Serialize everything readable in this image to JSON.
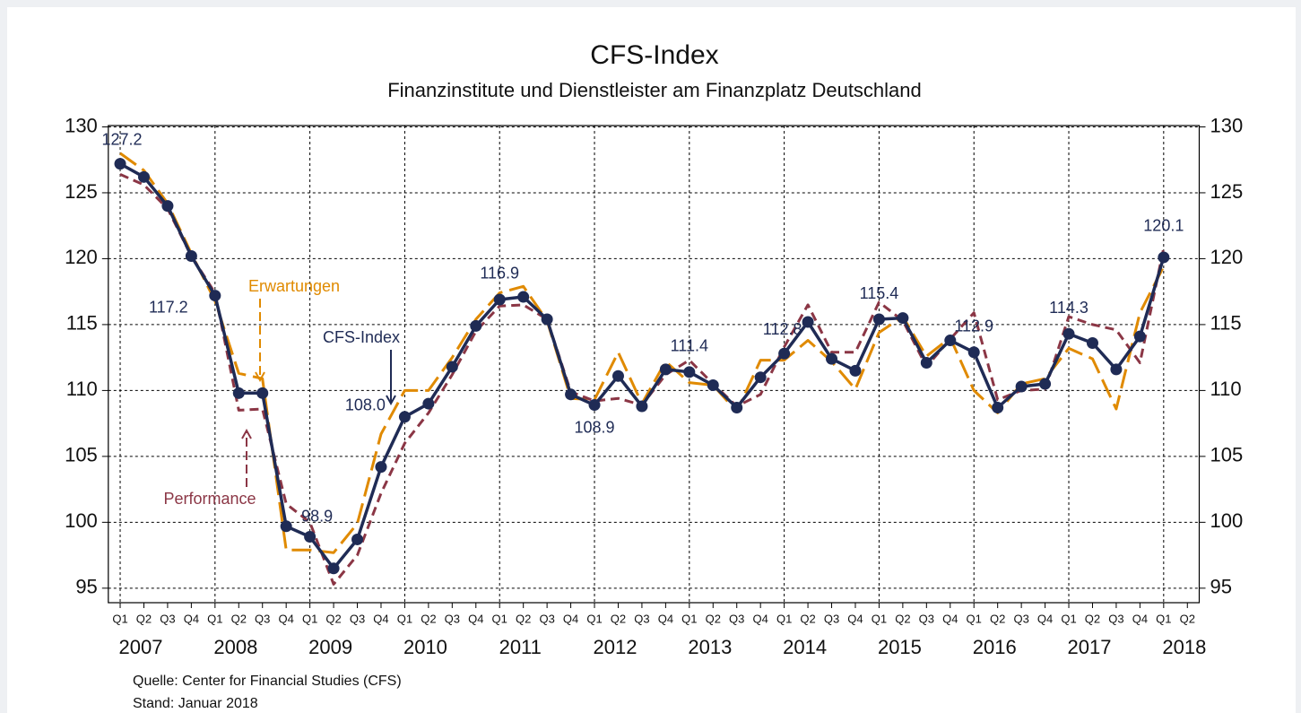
{
  "chart_data": {
    "type": "line",
    "title": "CFS-Index",
    "subtitle": "Finanzinstitute und Dienstleister am Finanzplatz Deutschland",
    "categories": [
      "Q1",
      "Q2",
      "Q3",
      "Q4",
      "Q1",
      "Q2",
      "Q3",
      "Q4",
      "Q1",
      "Q2",
      "Q3",
      "Q4",
      "Q1",
      "Q2",
      "Q3",
      "Q4",
      "Q1",
      "Q2",
      "Q3",
      "Q4",
      "Q1",
      "Q2",
      "Q3",
      "Q4",
      "Q1",
      "Q2",
      "Q3",
      "Q4",
      "Q1",
      "Q2",
      "Q3",
      "Q4",
      "Q1",
      "Q2",
      "Q3",
      "Q4",
      "Q1",
      "Q2",
      "Q3",
      "Q4",
      "Q1",
      "Q2",
      "Q3",
      "Q4",
      "Q1",
      "Q2"
    ],
    "years": [
      "2007",
      "2008",
      "2009",
      "2010",
      "2011",
      "2012",
      "2013",
      "2014",
      "2015",
      "2016",
      "2017",
      "2018"
    ],
    "series": [
      {
        "name": "CFS-Index",
        "color": "#1f2b55",
        "markers": true,
        "dash": false,
        "values": [
          127.2,
          126.2,
          124.0,
          120.2,
          117.2,
          109.8,
          109.8,
          99.7,
          98.9,
          96.5,
          98.7,
          104.2,
          108.0,
          109.0,
          111.8,
          114.9,
          116.9,
          117.1,
          115.4,
          109.7,
          108.9,
          111.1,
          108.8,
          111.6,
          111.4,
          110.4,
          108.7,
          111.0,
          112.8,
          115.2,
          112.4,
          111.5,
          115.4,
          115.5,
          112.1,
          113.8,
          112.9,
          108.7,
          110.3,
          110.5,
          114.3,
          113.6,
          111.6,
          114.1,
          120.1,
          null
        ],
        "value_labels": [
          "127.2",
          null,
          null,
          null,
          "117.2",
          null,
          null,
          null,
          "98.9",
          null,
          null,
          null,
          "108.0",
          null,
          null,
          null,
          "116.9",
          null,
          null,
          null,
          "108.9",
          null,
          null,
          null,
          "111.4",
          null,
          null,
          null,
          "112.8",
          null,
          null,
          null,
          "115.4",
          null,
          null,
          null,
          "112.9",
          null,
          null,
          null,
          "114.3",
          null,
          null,
          null,
          "120.1",
          null
        ]
      },
      {
        "name": "Erwartungen",
        "color": "#e08a00",
        "markers": false,
        "dash": true,
        "values": [
          128.0,
          126.7,
          124.2,
          120.4,
          116.8,
          111.3,
          110.9,
          97.9,
          97.9,
          97.7,
          99.9,
          106.7,
          110.0,
          110.0,
          112.5,
          115.4,
          117.4,
          117.9,
          115.3,
          109.4,
          109.3,
          112.9,
          109.0,
          112.2,
          110.6,
          110.4,
          108.4,
          112.3,
          112.3,
          113.8,
          112.2,
          110.1,
          114.4,
          115.6,
          112.6,
          114.0,
          110.0,
          108.3,
          110.5,
          110.9,
          113.2,
          112.4,
          108.6,
          115.9,
          119.4,
          null
        ]
      },
      {
        "name": "Performance",
        "color": "#8b3645",
        "markers": false,
        "dash": true,
        "values": [
          126.4,
          125.6,
          123.8,
          120.2,
          117.4,
          108.5,
          108.6,
          101.4,
          100.0,
          95.3,
          97.5,
          102.2,
          106.0,
          108.3,
          111.2,
          114.5,
          116.4,
          116.5,
          115.4,
          109.9,
          109.2,
          109.4,
          108.9,
          111.2,
          112.3,
          110.5,
          108.8,
          109.7,
          113.3,
          116.5,
          112.9,
          112.9,
          116.7,
          115.3,
          111.8,
          113.9,
          115.9,
          109.3,
          110.0,
          110.1,
          115.6,
          115.0,
          114.6,
          112.1,
          120.8,
          null
        ]
      }
    ],
    "ylim": [
      93.9,
      130.1
    ],
    "yticks": [
      95,
      100,
      105,
      110,
      115,
      120,
      125,
      130
    ],
    "grid": true,
    "notes": [
      "Quelle: Center for Financial Studies (CFS)",
      "Stand:  Januar 2018"
    ]
  }
}
